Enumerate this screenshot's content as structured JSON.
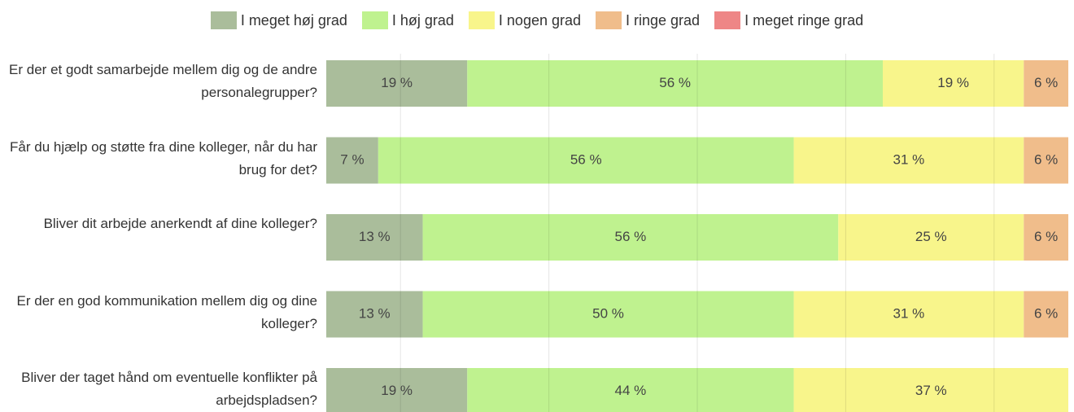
{
  "chart_data": {
    "type": "stacked_bar_horizontal",
    "categories": [
      "Er der et godt samarbejde mellem dig og de andre personalegrupper?",
      "Får du hjælp og støtte fra dine kolleger, når du har brug for det?",
      "Bliver dit arbejde anerkendt af dine kolleger?",
      "Er der en god kommunikation mellem dig og dine kolleger?",
      "Bliver der taget hånd om eventuelle konflikter på arbejdspladsen?"
    ],
    "series": [
      {
        "name": "I meget høj grad",
        "color": "#aabd9b",
        "values": [
          19,
          7,
          13,
          13,
          19
        ],
        "value_labels": [
          "19 %",
          "7 %",
          "13 %",
          "13 %",
          "19 %"
        ]
      },
      {
        "name": "I høj grad",
        "color": "#bff28f",
        "values": [
          56,
          56,
          56,
          50,
          44
        ],
        "value_labels": [
          "56 %",
          "56 %",
          "56 %",
          "50 %",
          "44 %"
        ]
      },
      {
        "name": "I nogen grad",
        "color": "#f8f58b",
        "values": [
          19,
          31,
          25,
          31,
          37
        ],
        "value_labels": [
          "19 %",
          "31 %",
          "25 %",
          "31 %",
          "37 %"
        ]
      },
      {
        "name": "I ringe grad",
        "color": "#f0bd8b",
        "values": [
          6,
          6,
          6,
          6,
          0
        ],
        "value_labels": [
          "6 %",
          "6 %",
          "6 %",
          "6 %",
          null
        ]
      },
      {
        "name": "I meget ringe grad",
        "color": "#ee8686",
        "values": [
          0,
          0,
          0,
          0,
          0
        ],
        "value_labels": [
          null,
          null,
          null,
          null,
          null
        ]
      }
    ],
    "xlim": [
      0,
      100
    ],
    "xticks": [
      10,
      30,
      50,
      70,
      90
    ],
    "grid": true,
    "legend": "top"
  }
}
